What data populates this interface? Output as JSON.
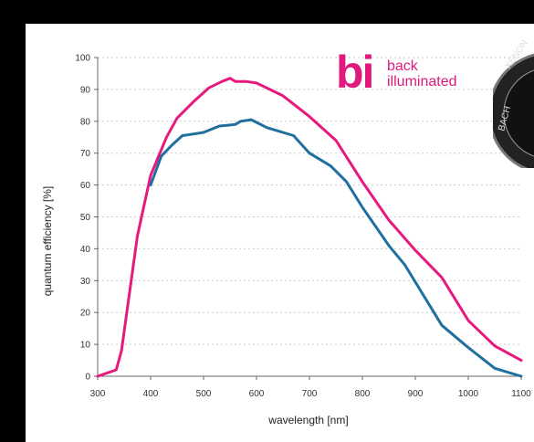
{
  "chart_data": {
    "type": "line",
    "xlabel": "wavelength [nm]",
    "ylabel": "quantum efficiency [%]",
    "xlim": [
      300,
      1100
    ],
    "ylim": [
      0,
      100
    ],
    "x_ticks": [
      "300",
      "400",
      "500",
      "600",
      "700",
      "800",
      "900",
      "1000",
      "1100"
    ],
    "y_ticks": [
      "0",
      "10",
      "20",
      "30",
      "40",
      "50",
      "60",
      "70",
      "80",
      "90",
      "100"
    ],
    "grid": "horizontal dashed",
    "series": [
      {
        "color": "#e8197d",
        "points": [
          [
            300,
            0
          ],
          [
            335,
            2
          ],
          [
            345,
            8
          ],
          [
            375,
            44
          ],
          [
            400,
            63
          ],
          [
            430,
            75
          ],
          [
            450,
            81
          ],
          [
            480,
            86
          ],
          [
            510,
            90.5
          ],
          [
            535,
            92.5
          ],
          [
            550,
            93.5
          ],
          [
            560,
            92.5
          ],
          [
            580,
            92.5
          ],
          [
            600,
            92
          ],
          [
            625,
            90
          ],
          [
            650,
            88
          ],
          [
            700,
            81.5
          ],
          [
            750,
            74
          ],
          [
            800,
            61
          ],
          [
            850,
            49
          ],
          [
            900,
            39.5
          ],
          [
            950,
            31
          ],
          [
            1000,
            17.5
          ],
          [
            1050,
            9.5
          ],
          [
            1100,
            5
          ]
        ]
      },
      {
        "color": "#1f6f9f",
        "points": [
          [
            400,
            60
          ],
          [
            420,
            69
          ],
          [
            440,
            72.5
          ],
          [
            460,
            75.5
          ],
          [
            480,
            76
          ],
          [
            500,
            76.5
          ],
          [
            515,
            77.5
          ],
          [
            530,
            78.5
          ],
          [
            560,
            79
          ],
          [
            570,
            80
          ],
          [
            590,
            80.5
          ],
          [
            620,
            78
          ],
          [
            650,
            76.5
          ],
          [
            670,
            75.5
          ],
          [
            700,
            70
          ],
          [
            740,
            66
          ],
          [
            770,
            61
          ],
          [
            800,
            53
          ],
          [
            850,
            41
          ],
          [
            880,
            35
          ],
          [
            950,
            16
          ],
          [
            1000,
            9
          ],
          [
            1050,
            2.5
          ],
          [
            1100,
            0
          ]
        ]
      }
    ]
  },
  "badge": {
    "mark": "bi",
    "line1": "back",
    "line2": "illuminated"
  },
  "seal": {
    "text": "XENON  BACH"
  }
}
